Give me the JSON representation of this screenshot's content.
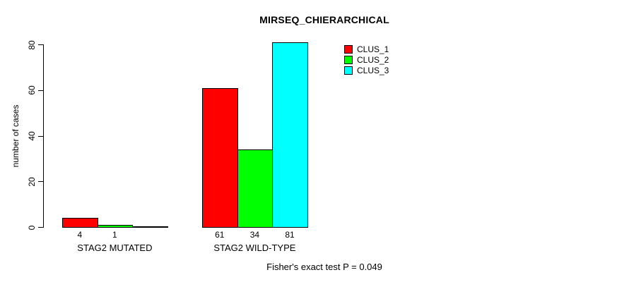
{
  "chart_data": {
    "type": "bar",
    "title": "MIRSEQ_CHIERARCHICAL",
    "xlabel": "",
    "ylabel": "number of cases",
    "categories": [
      "STAG2 MUTATED",
      "STAG2 WILD-TYPE"
    ],
    "series": [
      {
        "name": "CLUS_1",
        "color": "#ff0000",
        "values": [
          4,
          61
        ]
      },
      {
        "name": "CLUS_2",
        "color": "#00ff00",
        "values": [
          1,
          34
        ]
      },
      {
        "name": "CLUS_3",
        "color": "#00ffff",
        "values": [
          0,
          81
        ]
      }
    ],
    "ylim": [
      0,
      80
    ],
    "yticks": [
      0,
      20,
      40,
      60,
      80
    ],
    "grid": false,
    "bar_value_labels_shown": true,
    "zero_bars_unlabeled": true,
    "legend_position": "top-right",
    "legend_border": false,
    "annotation": "Fisher's exact test P = 0.049",
    "background_color": "#ffffff",
    "axis_color": "#000000"
  }
}
